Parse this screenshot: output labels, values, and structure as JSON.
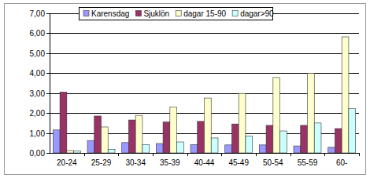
{
  "chart_data": {
    "type": "bar",
    "categories": [
      "20-24",
      "25-29",
      "30-34",
      "35-39",
      "40-44",
      "45-49",
      "50-54",
      "55-59",
      "60-"
    ],
    "series": [
      {
        "name": "Karensdag",
        "color": "#9999ff",
        "values": [
          1.15,
          0.62,
          0.52,
          0.47,
          0.42,
          0.4,
          0.4,
          0.35,
          0.28
        ]
      },
      {
        "name": "Sjuklön",
        "color": "#993366",
        "values": [
          3.05,
          1.85,
          1.65,
          1.55,
          1.58,
          1.45,
          1.38,
          1.38,
          1.22
        ]
      },
      {
        "name": "dagar 15-90",
        "color": "#ffffcc",
        "values": [
          0.12,
          1.3,
          1.88,
          2.3,
          2.75,
          2.98,
          3.78,
          4.0,
          5.82
        ]
      },
      {
        "name": "dagar>90",
        "color": "#ccffff",
        "values": [
          0.1,
          0.18,
          0.42,
          0.55,
          0.75,
          0.85,
          1.1,
          1.5,
          2.22
        ]
      }
    ],
    "ylim": [
      0,
      7
    ],
    "yticks": [
      {
        "value": 0,
        "label": "0,00"
      },
      {
        "value": 1,
        "label": "1,00"
      },
      {
        "value": 2,
        "label": "2,00"
      },
      {
        "value": 3,
        "label": "3,00"
      },
      {
        "value": 4,
        "label": "4,00"
      },
      {
        "value": 5,
        "label": "5,00"
      },
      {
        "value": 6,
        "label": "6,00"
      },
      {
        "value": 7,
        "label": "7,00"
      }
    ],
    "grid": true,
    "legend": "top"
  }
}
